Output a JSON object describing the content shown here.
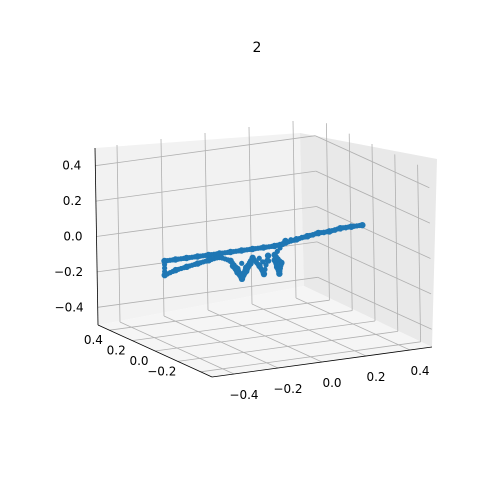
{
  "chart_data": {
    "type": "scatter",
    "title": "2",
    "xlabel": "",
    "ylabel": "",
    "zlabel": "",
    "xlim": [
      -0.5,
      0.5
    ],
    "ylim": [
      -0.5,
      0.5
    ],
    "zlim": [
      -0.5,
      0.5
    ],
    "x_ticks": [
      "−0.4",
      "−0.2",
      "0.0",
      "0.2",
      "0.4"
    ],
    "y_ticks": [
      "−0.2",
      "0.0",
      "0.2",
      "0.4"
    ],
    "z_ticks": [
      "−0.4",
      "−0.2",
      "0.0",
      "0.2",
      "0.4"
    ],
    "grid": true,
    "view": "3d",
    "marker_color": "#1f77b4",
    "description": "3D point cloud shaped like a rifle; points lie roughly along x from -0.45 to 0.45 near z=0 with a stock at negative x and grip/magazine below center.",
    "series": [
      {
        "x": [
          0.45,
          0.4,
          0.35,
          0.3,
          0.25,
          0.2,
          0.15,
          0.1,
          0.05,
          0.0,
          -0.05,
          -0.1,
          -0.15,
          -0.2,
          -0.25,
          -0.3,
          -0.35,
          -0.4,
          -0.45,
          -0.45,
          -0.4,
          -0.35,
          -0.3,
          -0.25,
          -0.2,
          -0.15,
          -0.12,
          -0.1,
          -0.08,
          -0.05,
          -0.02,
          0.0,
          0.02,
          -0.14,
          -0.12,
          -0.1,
          -0.08,
          -0.06,
          0.05,
          0.06,
          0.07,
          0.08,
          0.05,
          0.1,
          0.2,
          0.3,
          0.4
        ],
        "y": [
          0,
          0,
          0,
          0,
          0,
          0,
          0,
          0,
          0,
          0,
          0,
          0,
          0,
          0,
          0,
          0,
          0,
          0,
          0,
          0,
          0,
          0,
          0,
          0,
          0,
          0,
          0,
          0,
          0,
          0,
          0,
          0,
          0,
          0,
          0,
          0,
          0,
          0,
          0,
          0,
          0,
          0,
          0,
          0,
          0,
          0,
          0
        ],
        "z": [
          0.05,
          0.05,
          0.05,
          0.04,
          0.04,
          0.03,
          0.02,
          0.01,
          0.0,
          0.0,
          0.0,
          0.0,
          0.0,
          0.0,
          0.0,
          0.0,
          0.0,
          0.0,
          0.0,
          -0.08,
          -0.06,
          -0.05,
          -0.04,
          -0.03,
          -0.02,
          -0.05,
          -0.1,
          -0.15,
          -0.1,
          -0.05,
          -0.1,
          -0.15,
          -0.05,
          -0.08,
          -0.12,
          -0.16,
          -0.12,
          -0.08,
          -0.08,
          -0.12,
          -0.16,
          -0.1,
          -0.05,
          0.02,
          0.03,
          0.04,
          0.05
        ]
      }
    ]
  }
}
